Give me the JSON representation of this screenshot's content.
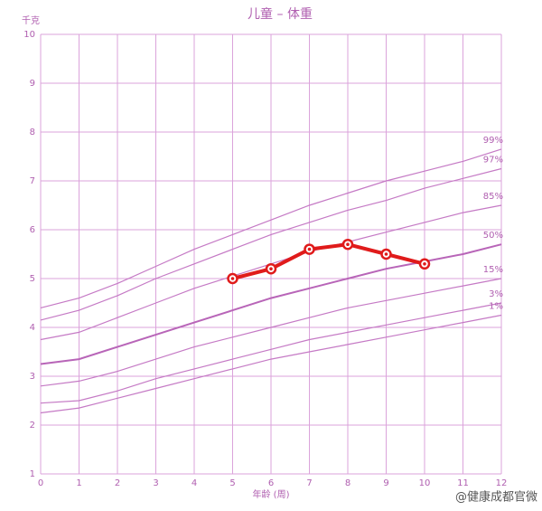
{
  "chart_data": {
    "type": "line",
    "title": "儿童 – 体重",
    "y_label": "千克",
    "x_label": "年龄 (周)",
    "watermark": "@健康成都官微",
    "x": [
      0,
      1,
      2,
      3,
      4,
      5,
      6,
      7,
      8,
      9,
      10,
      11,
      12
    ],
    "xlim": [
      0,
      12
    ],
    "xticks": [
      0,
      1,
      2,
      3,
      4,
      5,
      6,
      7,
      8,
      9,
      10,
      11,
      12
    ],
    "ylim": [
      1,
      10
    ],
    "yticks": [
      1,
      2,
      3,
      4,
      5,
      6,
      7,
      8,
      9,
      10
    ],
    "grid": true,
    "grid_color": "#dba3db",
    "series": [
      {
        "name": "99%",
        "color": "#c57ac5",
        "values": [
          4.4,
          4.6,
          4.9,
          5.25,
          5.6,
          5.9,
          6.2,
          6.5,
          6.75,
          7.0,
          7.2,
          7.4,
          7.65
        ]
      },
      {
        "name": "97%",
        "color": "#c57ac5",
        "values": [
          4.15,
          4.35,
          4.65,
          5.0,
          5.3,
          5.6,
          5.9,
          6.15,
          6.4,
          6.6,
          6.85,
          7.05,
          7.25
        ]
      },
      {
        "name": "85%",
        "color": "#c57ac5",
        "values": [
          3.75,
          3.9,
          4.2,
          4.5,
          4.8,
          5.05,
          5.3,
          5.55,
          5.75,
          5.95,
          6.15,
          6.35,
          6.5
        ]
      },
      {
        "name": "50%",
        "color": "#b865b8",
        "values": [
          3.25,
          3.35,
          3.6,
          3.85,
          4.1,
          4.35,
          4.6,
          4.8,
          5.0,
          5.2,
          5.35,
          5.5,
          5.7
        ]
      },
      {
        "name": "15%",
        "color": "#c57ac5",
        "values": [
          2.8,
          2.9,
          3.1,
          3.35,
          3.6,
          3.8,
          4.0,
          4.2,
          4.4,
          4.55,
          4.7,
          4.85,
          5.0
        ]
      },
      {
        "name": "3%",
        "color": "#c57ac5",
        "values": [
          2.45,
          2.5,
          2.7,
          2.95,
          3.15,
          3.35,
          3.55,
          3.75,
          3.9,
          4.05,
          4.2,
          4.35,
          4.5
        ]
      },
      {
        "name": "1%",
        "color": "#c57ac5",
        "values": [
          2.25,
          2.35,
          2.55,
          2.75,
          2.95,
          3.15,
          3.35,
          3.5,
          3.65,
          3.8,
          3.95,
          4.1,
          4.25
        ]
      }
    ],
    "measured": {
      "color": "#e01b1b",
      "x": [
        5,
        6,
        7,
        8,
        9,
        10
      ],
      "values": [
        5.0,
        5.2,
        5.6,
        5.7,
        5.5,
        5.3
      ]
    }
  }
}
